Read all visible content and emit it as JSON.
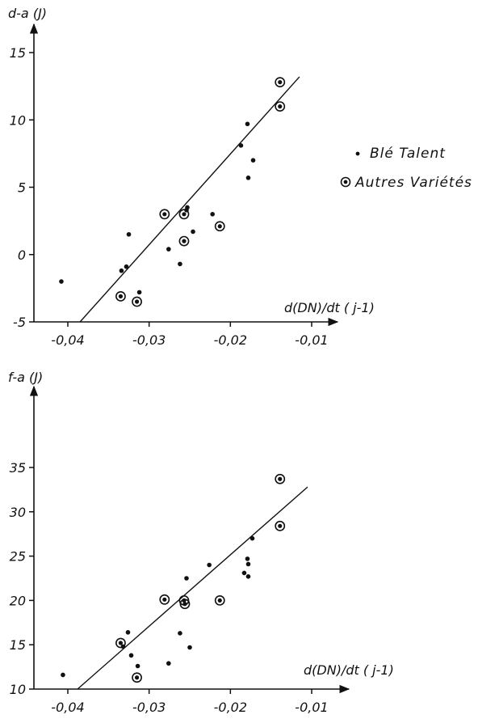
{
  "legend": {
    "talent_label": "Blé  Talent",
    "autres_label": "Autres Variétés"
  },
  "chart_data": [
    {
      "type": "scatter",
      "ylabel": "d-a (J)",
      "xlabel": "d(DN)/dt ( j-1)",
      "xlim": [
        -0.042,
        -0.008
      ],
      "ylim": [
        -5,
        15
      ],
      "xticks": [
        -0.04,
        -0.03,
        -0.02,
        -0.01
      ],
      "xtick_labels": [
        "-0,04",
        "-0,03",
        "-0,02",
        "-0,01"
      ],
      "yticks": [
        -5,
        0,
        5,
        10,
        15
      ],
      "ytick_labels": [
        "-5",
        "0",
        "5",
        "10",
        "15"
      ],
      "series": [
        {
          "name": "Blé Talent",
          "points": [
            [
              -0.0408,
              -2.0
            ],
            [
              -0.0334,
              -1.2
            ],
            [
              -0.0328,
              -0.9
            ],
            [
              -0.0325,
              1.5
            ],
            [
              -0.0312,
              -2.8
            ],
            [
              -0.0276,
              0.4
            ],
            [
              -0.0262,
              -0.7
            ],
            [
              -0.0254,
              3.3
            ],
            [
              -0.0253,
              3.5
            ],
            [
              -0.0246,
              1.7
            ],
            [
              -0.0222,
              3.0
            ],
            [
              -0.0187,
              8.1
            ],
            [
              -0.0179,
              9.7
            ],
            [
              -0.0178,
              5.7
            ],
            [
              -0.0172,
              7.0
            ]
          ]
        },
        {
          "name": "Autres Variétés",
          "points": [
            [
              -0.0335,
              -3.1
            ],
            [
              -0.0315,
              -3.5
            ],
            [
              -0.0281,
              3.0
            ],
            [
              -0.0257,
              3.0
            ],
            [
              -0.0257,
              1.0
            ],
            [
              -0.0213,
              2.1
            ],
            [
              -0.0139,
              12.8
            ],
            [
              -0.0139,
              11.0
            ]
          ]
        }
      ],
      "regression_line": {
        "x": [
          -0.0385,
          -0.0115
        ],
        "y": [
          -5.0,
          13.2
        ]
      }
    },
    {
      "type": "scatter",
      "ylabel": "f-a (J)",
      "xlabel": "d(DN)/dt ( j-1)",
      "xlim": [
        -0.042,
        -0.008
      ],
      "ylim": [
        10,
        37
      ],
      "xticks": [
        -0.04,
        -0.03,
        -0.02,
        -0.01
      ],
      "xtick_labels": [
        "-0,04",
        "-0,03",
        "-0,02",
        "-0,01"
      ],
      "yticks": [
        10,
        15,
        20,
        25,
        30,
        35
      ],
      "ytick_labels": [
        "10",
        "15",
        "20",
        "25",
        "30",
        "35"
      ],
      "series": [
        {
          "name": "Blé Talent",
          "points": [
            [
              -0.0406,
              11.6
            ],
            [
              -0.0332,
              14.8
            ],
            [
              -0.0326,
              16.4
            ],
            [
              -0.0322,
              13.8
            ],
            [
              -0.0314,
              12.6
            ],
            [
              -0.0276,
              12.9
            ],
            [
              -0.0262,
              16.3
            ],
            [
              -0.0254,
              22.5
            ],
            [
              -0.025,
              14.7
            ],
            [
              -0.0226,
              24.0
            ],
            [
              -0.0183,
              23.1
            ],
            [
              -0.0179,
              24.7
            ],
            [
              -0.0178,
              24.1
            ],
            [
              -0.0178,
              22.7
            ],
            [
              -0.0173,
              27.0
            ]
          ]
        },
        {
          "name": "Autres Variétés",
          "points": [
            [
              -0.0335,
              15.2
            ],
            [
              -0.0315,
              11.3
            ],
            [
              -0.0281,
              20.1
            ],
            [
              -0.0257,
              20.0
            ],
            [
              -0.0256,
              19.6
            ],
            [
              -0.0213,
              20.0
            ],
            [
              -0.0139,
              33.7
            ],
            [
              -0.0139,
              28.4
            ]
          ]
        }
      ],
      "regression_line": {
        "x": [
          -0.0388,
          -0.0105
        ],
        "y": [
          10.0,
          32.8
        ]
      }
    }
  ]
}
